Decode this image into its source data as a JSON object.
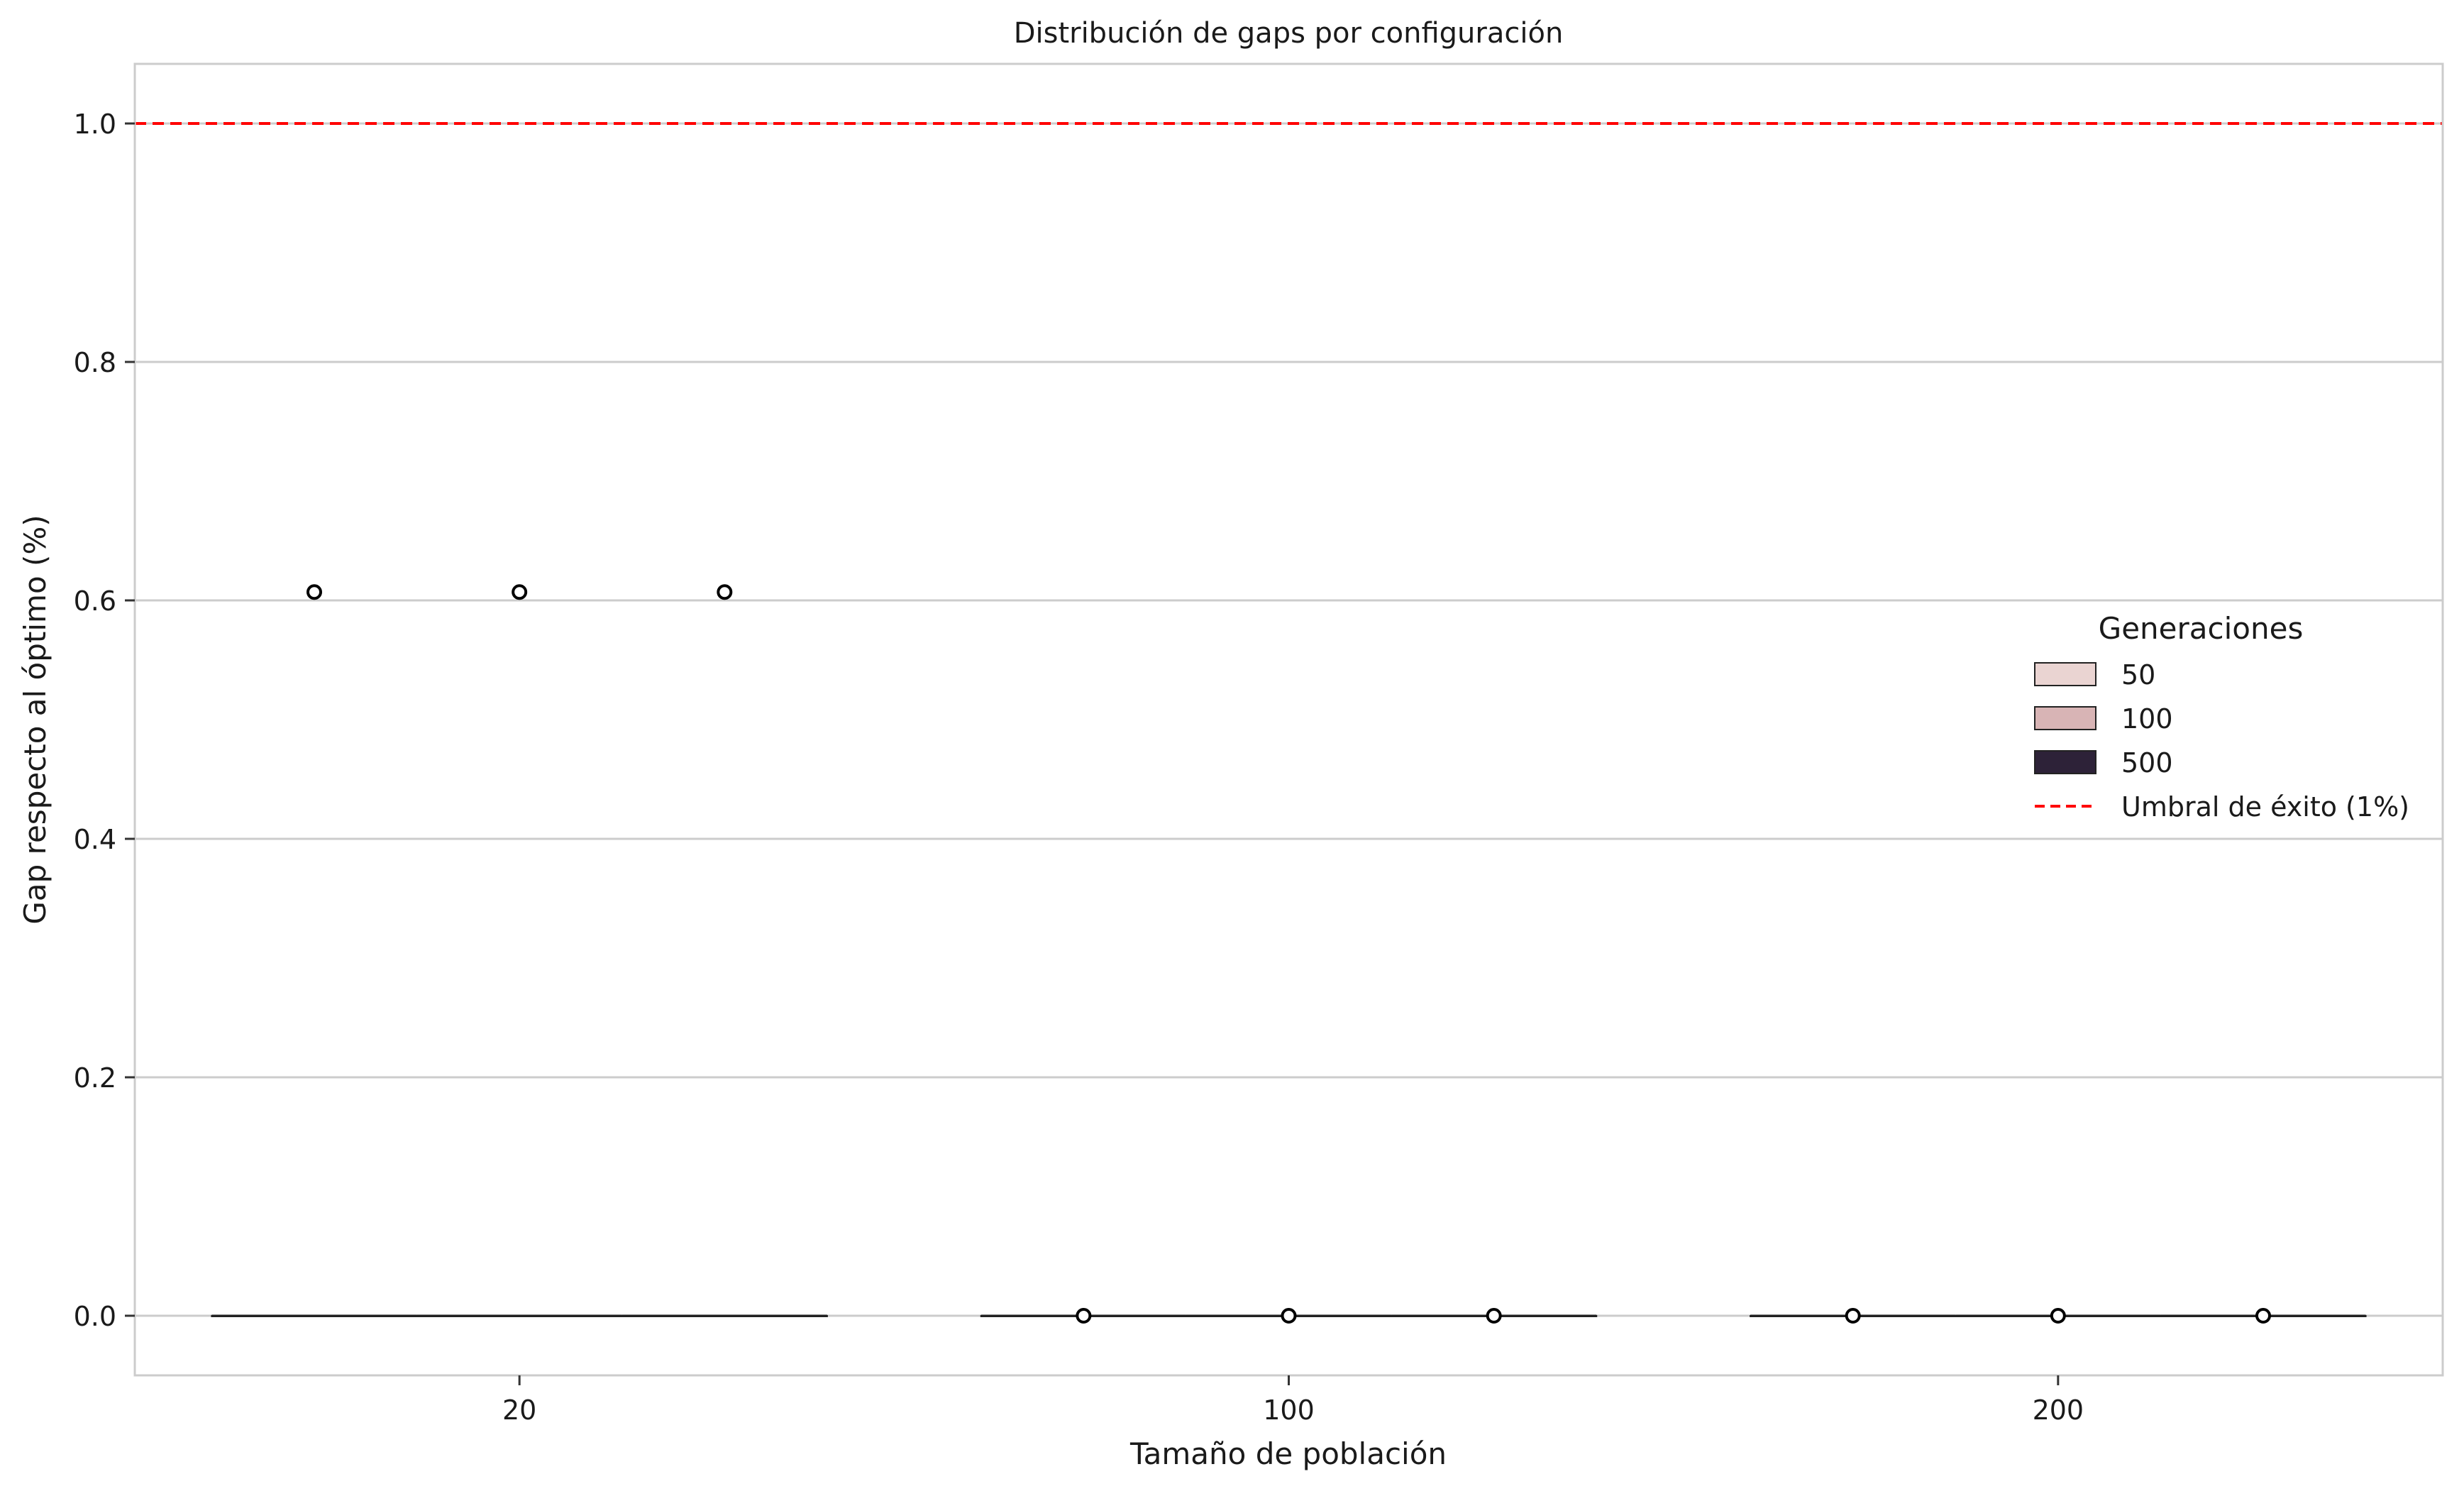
{
  "chart_data": {
    "type": "box",
    "title": "Distribución de gaps por configuración",
    "xlabel": "Tamaño de población",
    "ylabel": "Gap respecto al óptimo (%)",
    "categories": [
      "20",
      "100",
      "200"
    ],
    "ylim": [
      -0.05,
      1.05
    ],
    "yticks": [
      0.0,
      0.2,
      0.4,
      0.6,
      0.8,
      1.0
    ],
    "ytick_labels": [
      "0.0",
      "0.2",
      "0.4",
      "0.6",
      "0.8",
      "1.0"
    ],
    "grid": "horizontal",
    "legend": {
      "title": "Generaciones",
      "placement": "center-right",
      "entries": [
        {
          "label": "50",
          "color": "#ead4d2",
          "kind": "box"
        },
        {
          "label": "100",
          "color": "#d8b4b5",
          "kind": "box"
        },
        {
          "label": "500",
          "color": "#2d2238",
          "kind": "box"
        },
        {
          "label": "Umbral de éxito (1%)",
          "color": "#ff0000",
          "kind": "dashed-line"
        }
      ]
    },
    "series": [
      {
        "name": "50",
        "color": "#ead4d2",
        "median": [
          0.0,
          0.0,
          0.0
        ],
        "q1": [
          0.0,
          0.0,
          0.0
        ],
        "q3": [
          0.0,
          0.0,
          0.0
        ],
        "outliers": [
          [
            0.607
          ],
          [
            0.0
          ],
          [
            0.0
          ]
        ]
      },
      {
        "name": "100",
        "color": "#d8b4b5",
        "median": [
          0.0,
          0.0,
          0.0
        ],
        "q1": [
          0.0,
          0.0,
          0.0
        ],
        "q3": [
          0.0,
          0.0,
          0.0
        ],
        "outliers": [
          [
            0.607
          ],
          [
            0.0
          ],
          [
            0.0
          ]
        ]
      },
      {
        "name": "500",
        "color": "#2d2238",
        "median": [
          0.0,
          0.0,
          0.0
        ],
        "q1": [
          0.0,
          0.0,
          0.0
        ],
        "q3": [
          0.0,
          0.0,
          0.0
        ],
        "outliers": [
          [
            0.607
          ],
          [
            0.0
          ],
          [
            0.0
          ]
        ]
      }
    ],
    "reference_line": {
      "y": 1.0,
      "label": "Umbral de éxito (1%)",
      "color": "#ff0000",
      "style": "dashed"
    },
    "colors": {
      "grid": "#cccccc",
      "frame": "#cccccc",
      "median": "#222222"
    }
  }
}
